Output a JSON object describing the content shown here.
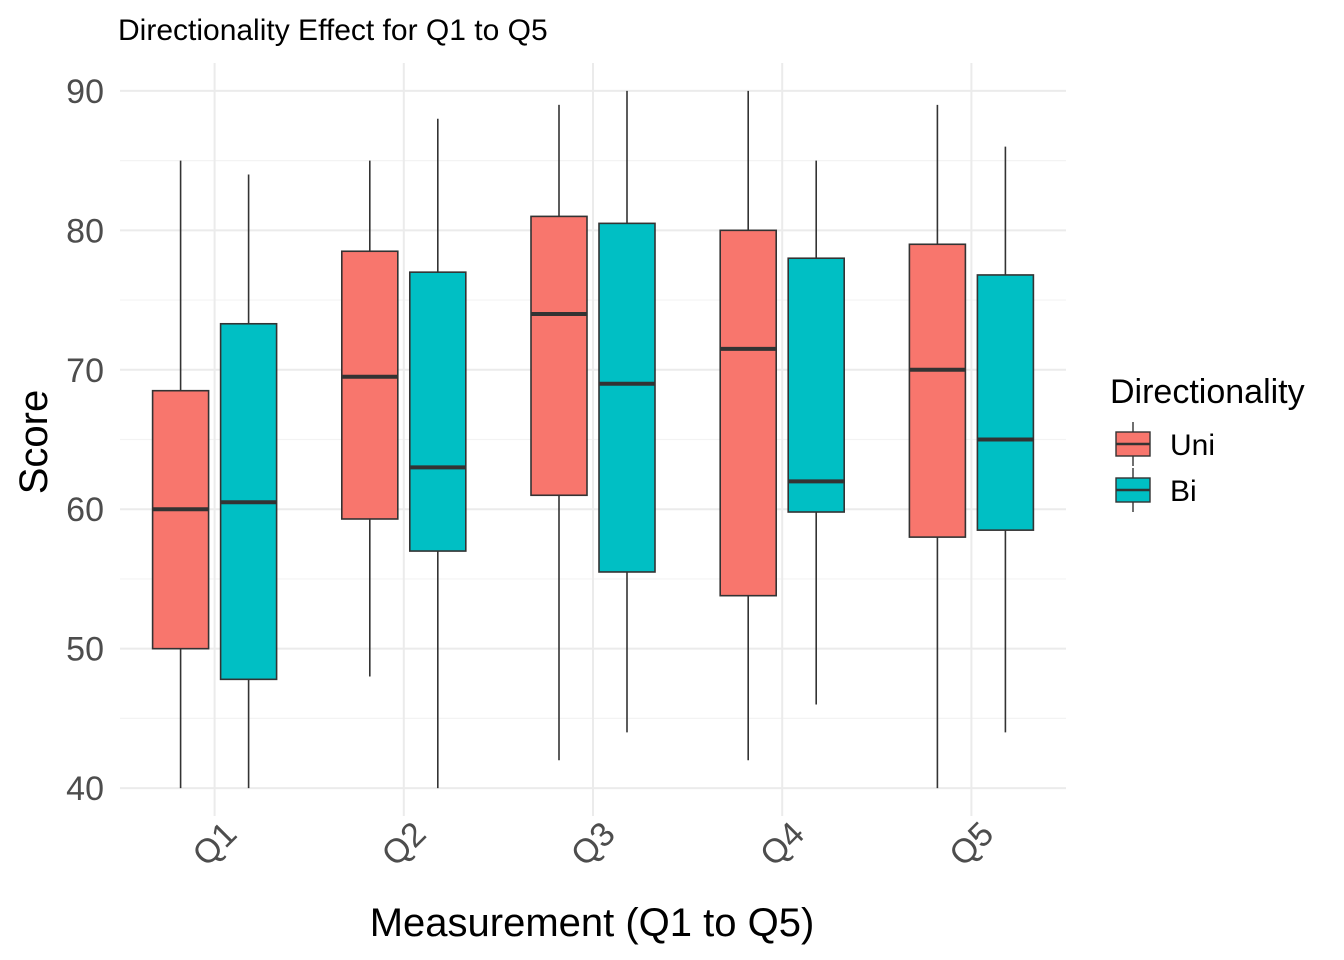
{
  "chart_data": {
    "type": "boxplot",
    "title": "Directionality Effect for Q1 to Q5",
    "xlabel": "Measurement (Q1 to Q5)",
    "ylabel": "Score",
    "categories": [
      "Q1",
      "Q2",
      "Q3",
      "Q4",
      "Q5"
    ],
    "ylim": [
      38,
      92
    ],
    "yticks": [
      40,
      50,
      60,
      70,
      80,
      90
    ],
    "grid": true,
    "legend": {
      "title": "Directionality",
      "position": "right"
    },
    "series": [
      {
        "name": "Uni",
        "color": "#F8766D",
        "boxes": [
          {
            "min": 40,
            "q1": 50,
            "median": 60,
            "q3": 68.5,
            "max": 85
          },
          {
            "min": 48,
            "q1": 59.3,
            "median": 69.5,
            "q3": 78.5,
            "max": 85
          },
          {
            "min": 42,
            "q1": 61,
            "median": 74,
            "q3": 81,
            "max": 89
          },
          {
            "min": 42,
            "q1": 53.8,
            "median": 71.5,
            "q3": 80,
            "max": 90
          },
          {
            "min": 40,
            "q1": 58,
            "median": 70,
            "q3": 79,
            "max": 89
          }
        ]
      },
      {
        "name": "Bi",
        "color": "#00BFC4",
        "boxes": [
          {
            "min": 40,
            "q1": 47.8,
            "median": 60.5,
            "q3": 73.3,
            "max": 84
          },
          {
            "min": 40,
            "q1": 57,
            "median": 63,
            "q3": 77,
            "max": 88
          },
          {
            "min": 44,
            "q1": 55.5,
            "median": 69,
            "q3": 80.5,
            "max": 90
          },
          {
            "min": 46,
            "q1": 59.8,
            "median": 62,
            "q3": 78,
            "max": 85
          },
          {
            "min": 44,
            "q1": 58.5,
            "median": 65,
            "q3": 76.8,
            "max": 86
          }
        ]
      }
    ]
  }
}
